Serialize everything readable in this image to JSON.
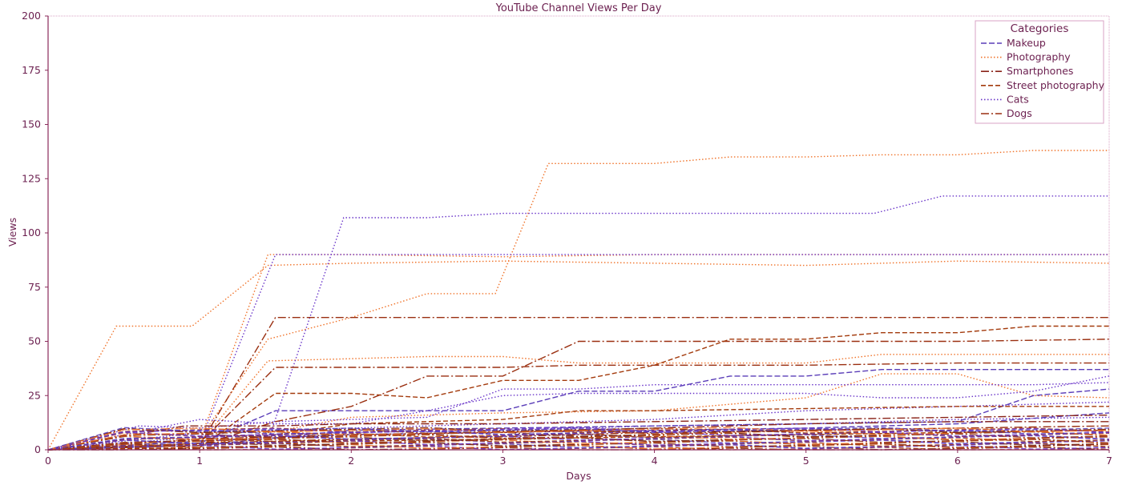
{
  "chart_data": {
    "type": "line",
    "title": "YouTube Channel Views Per Day",
    "xlabel": "Days",
    "ylabel": "Views",
    "xlim": [
      0,
      7
    ],
    "ylim": [
      0,
      200
    ],
    "xticks": [
      0,
      1,
      2,
      3,
      4,
      5,
      6,
      7
    ],
    "yticks": [
      0,
      25,
      50,
      75,
      100,
      125,
      150,
      175,
      200
    ],
    "grid": false,
    "legend": {
      "title": "Categories",
      "placement": "top-right",
      "entries": [
        "Makeup",
        "Photography",
        "Smartphones",
        "Street photography",
        "Cats",
        "Dogs"
      ]
    },
    "colors": {
      "Makeup": "#5a3db8",
      "Photography": "#f0732a",
      "Smartphones": "#8a2419",
      "Street photography": "#a33a0c",
      "Cats": "#6a35c9",
      "Dogs": "#9a2f10",
      "text": "#6b1f4f",
      "frame": "#d9a3c4"
    },
    "series": [
      {
        "name": "Photography",
        "x": [
          0,
          0.45,
          0.95,
          1.45,
          2,
          3,
          4,
          5,
          6,
          7
        ],
        "values": [
          0,
          57,
          57,
          85,
          86,
          87,
          86,
          85,
          87,
          86
        ]
      },
      {
        "name": "Photography",
        "x": [
          0,
          1,
          1.45,
          2,
          2.5,
          2.95,
          3.3,
          4,
          4.5,
          5,
          5.5,
          6,
          6.5,
          7
        ],
        "values": [
          0,
          5,
          51,
          61,
          72,
          72,
          132,
          132,
          135,
          135,
          136,
          136,
          138,
          138
        ]
      },
      {
        "name": "Photography",
        "x": [
          0,
          1,
          1.45,
          2,
          3,
          4,
          5,
          6,
          7
        ],
        "values": [
          0,
          4,
          90,
          90,
          89,
          90,
          90,
          90,
          90
        ]
      },
      {
        "name": "Photography",
        "x": [
          0,
          1,
          1.45,
          2,
          2.5,
          3,
          3.5,
          4,
          5,
          5.5,
          6,
          7
        ],
        "values": [
          0,
          3,
          41,
          42,
          43,
          43,
          40,
          40,
          40,
          44,
          44,
          44
        ]
      },
      {
        "name": "Photography",
        "x": [
          0,
          1,
          2,
          3,
          4,
          5,
          5.5,
          6,
          6.5,
          7
        ],
        "values": [
          0,
          2,
          15,
          17,
          18,
          24,
          35,
          35,
          25,
          24
        ]
      },
      {
        "name": "Cats",
        "x": [
          0,
          1,
          1.45,
          1.95,
          2.5,
          3,
          4,
          5,
          5.45,
          5.9,
          7
        ],
        "values": [
          0,
          2,
          4,
          107,
          107,
          109,
          109,
          109,
          109,
          117,
          117
        ]
      },
      {
        "name": "Cats",
        "x": [
          0,
          1,
          1.5,
          2,
          3,
          4,
          5,
          6,
          7
        ],
        "values": [
          0,
          3,
          90,
          90,
          90,
          90,
          90,
          90,
          90
        ]
      },
      {
        "name": "Cats",
        "x": [
          0,
          0.6,
          1,
          1.5,
          2,
          2.5,
          3,
          3.5,
          4,
          4.5,
          5,
          5.5,
          6,
          6.5,
          7
        ],
        "values": [
          0,
          11,
          10,
          13,
          14,
          15,
          28,
          28,
          30,
          30,
          30,
          30,
          30,
          30,
          31
        ]
      },
      {
        "name": "Cats",
        "x": [
          0,
          1,
          1.5,
          2,
          2.5,
          3,
          3.5,
          4,
          4.5,
          5,
          5.5,
          6,
          6.5,
          7
        ],
        "values": [
          0,
          14,
          12,
          12,
          18,
          25,
          26,
          26,
          26,
          26,
          24,
          24,
          27,
          34
        ]
      },
      {
        "name": "Cats",
        "x": [
          0,
          1,
          2,
          3,
          4,
          5,
          6,
          7
        ],
        "values": [
          0,
          8,
          10,
          12,
          14,
          18,
          20,
          22
        ]
      },
      {
        "name": "Cats",
        "x": [
          0,
          1,
          2,
          3,
          4,
          5,
          6,
          7
        ],
        "values": [
          0,
          6,
          8,
          9,
          11,
          12,
          14,
          15
        ]
      },
      {
        "name": "Makeup",
        "x": [
          0,
          1,
          1.5,
          2,
          2.5,
          3,
          3.5,
          4,
          4.5,
          5,
          5.5,
          6,
          6.5,
          7
        ],
        "values": [
          0,
          3,
          18,
          18,
          18,
          18,
          27,
          27,
          34,
          34,
          37,
          37,
          37,
          37
        ]
      },
      {
        "name": "Makeup",
        "x": [
          0,
          1,
          2,
          3,
          4,
          5,
          6,
          6.5,
          7
        ],
        "values": [
          0,
          2,
          9,
          10,
          11,
          12,
          13,
          25,
          28
        ]
      },
      {
        "name": "Makeup",
        "x": [
          0,
          1,
          2,
          3,
          4,
          5,
          6,
          7
        ],
        "values": [
          0,
          4,
          7,
          8,
          9,
          10,
          12,
          17
        ]
      },
      {
        "name": "Dogs",
        "x": [
          0,
          1,
          1.5,
          2,
          3,
          4,
          5,
          6,
          7
        ],
        "values": [
          0,
          2,
          61,
          61,
          61,
          61,
          61,
          61,
          61
        ]
      },
      {
        "name": "Dogs",
        "x": [
          0,
          1,
          1.5,
          2,
          2.5,
          3,
          3.5,
          4,
          5,
          6,
          7
        ],
        "values": [
          0,
          3,
          38,
          38,
          38,
          38,
          39,
          39,
          39,
          40,
          40
        ]
      },
      {
        "name": "Dogs",
        "x": [
          0,
          1,
          1.5,
          2,
          2.5,
          3,
          3.5,
          4,
          5,
          6,
          7
        ],
        "values": [
          0,
          2,
          13,
          20,
          34,
          34,
          50,
          50,
          50,
          50,
          51
        ]
      },
      {
        "name": "Street photography",
        "x": [
          0,
          1,
          1.5,
          2,
          2.5,
          3,
          3.5,
          4,
          4.5,
          5,
          5.5,
          6,
          6.5,
          7
        ],
        "values": [
          0,
          1,
          26,
          26,
          24,
          32,
          32,
          39,
          51,
          51,
          54,
          54,
          57,
          57
        ]
      },
      {
        "name": "Street photography",
        "x": [
          0,
          1,
          2,
          3,
          3.5,
          4,
          5,
          6,
          7
        ],
        "values": [
          0,
          2,
          12,
          14,
          18,
          18,
          19,
          20,
          20
        ]
      },
      {
        "name": "Smartphones",
        "x": [
          0,
          0.9,
          1.5,
          2,
          3,
          4,
          5,
          6,
          7
        ],
        "values": [
          0,
          11,
          11,
          12,
          12,
          13,
          14,
          15,
          16
        ]
      },
      {
        "name": "Smartphones",
        "x": [
          0,
          1,
          2,
          3,
          4,
          5,
          6,
          7
        ],
        "values": [
          0,
          5,
          7,
          8,
          10,
          12,
          13,
          13
        ]
      },
      {
        "name": "Dogs",
        "x": [
          0,
          1,
          2,
          3,
          4,
          5,
          6,
          7
        ],
        "values": [
          0,
          3,
          5,
          6,
          8,
          9,
          10,
          11
        ]
      },
      {
        "name": "Street photography",
        "x": [
          0,
          1,
          2,
          3,
          4,
          5,
          6,
          7
        ],
        "values": [
          0,
          2,
          4,
          5,
          6,
          7,
          8,
          9
        ]
      }
    ]
  }
}
